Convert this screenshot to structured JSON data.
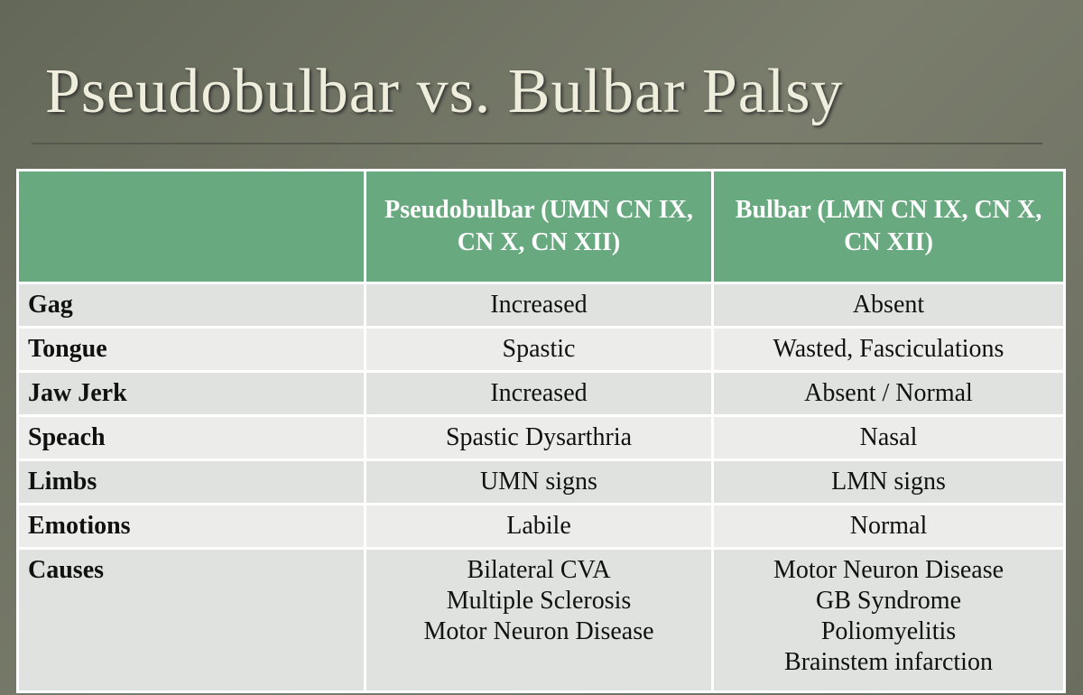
{
  "title": "Pseudobulbar vs. Bulbar Palsy",
  "table": {
    "header": [
      "Pseudobulbar (UMN CN IX, CN X, CN XII)",
      "Bulbar (LMN CN IX, CN X, CN XII)"
    ],
    "rows": [
      [
        "Gag",
        "Increased",
        "Absent"
      ],
      [
        "Tongue",
        "Spastic",
        "Wasted, Fasciculations"
      ],
      [
        "Jaw Jerk",
        "Increased",
        "Absent / Normal"
      ],
      [
        "Speach",
        "Spastic Dysarthria",
        "Nasal"
      ],
      [
        "Limbs",
        "UMN signs",
        "LMN signs"
      ],
      [
        "Emotions",
        "Labile",
        "Normal"
      ],
      [
        "Causes",
        [
          "Bilateral CVA",
          "Multiple Sclerosis",
          "Motor Neuron Disease"
        ],
        [
          "Motor Neuron Disease",
          "GB Syndrome",
          "Poliomyelitis",
          "Brainstem infarction"
        ]
      ]
    ]
  }
}
